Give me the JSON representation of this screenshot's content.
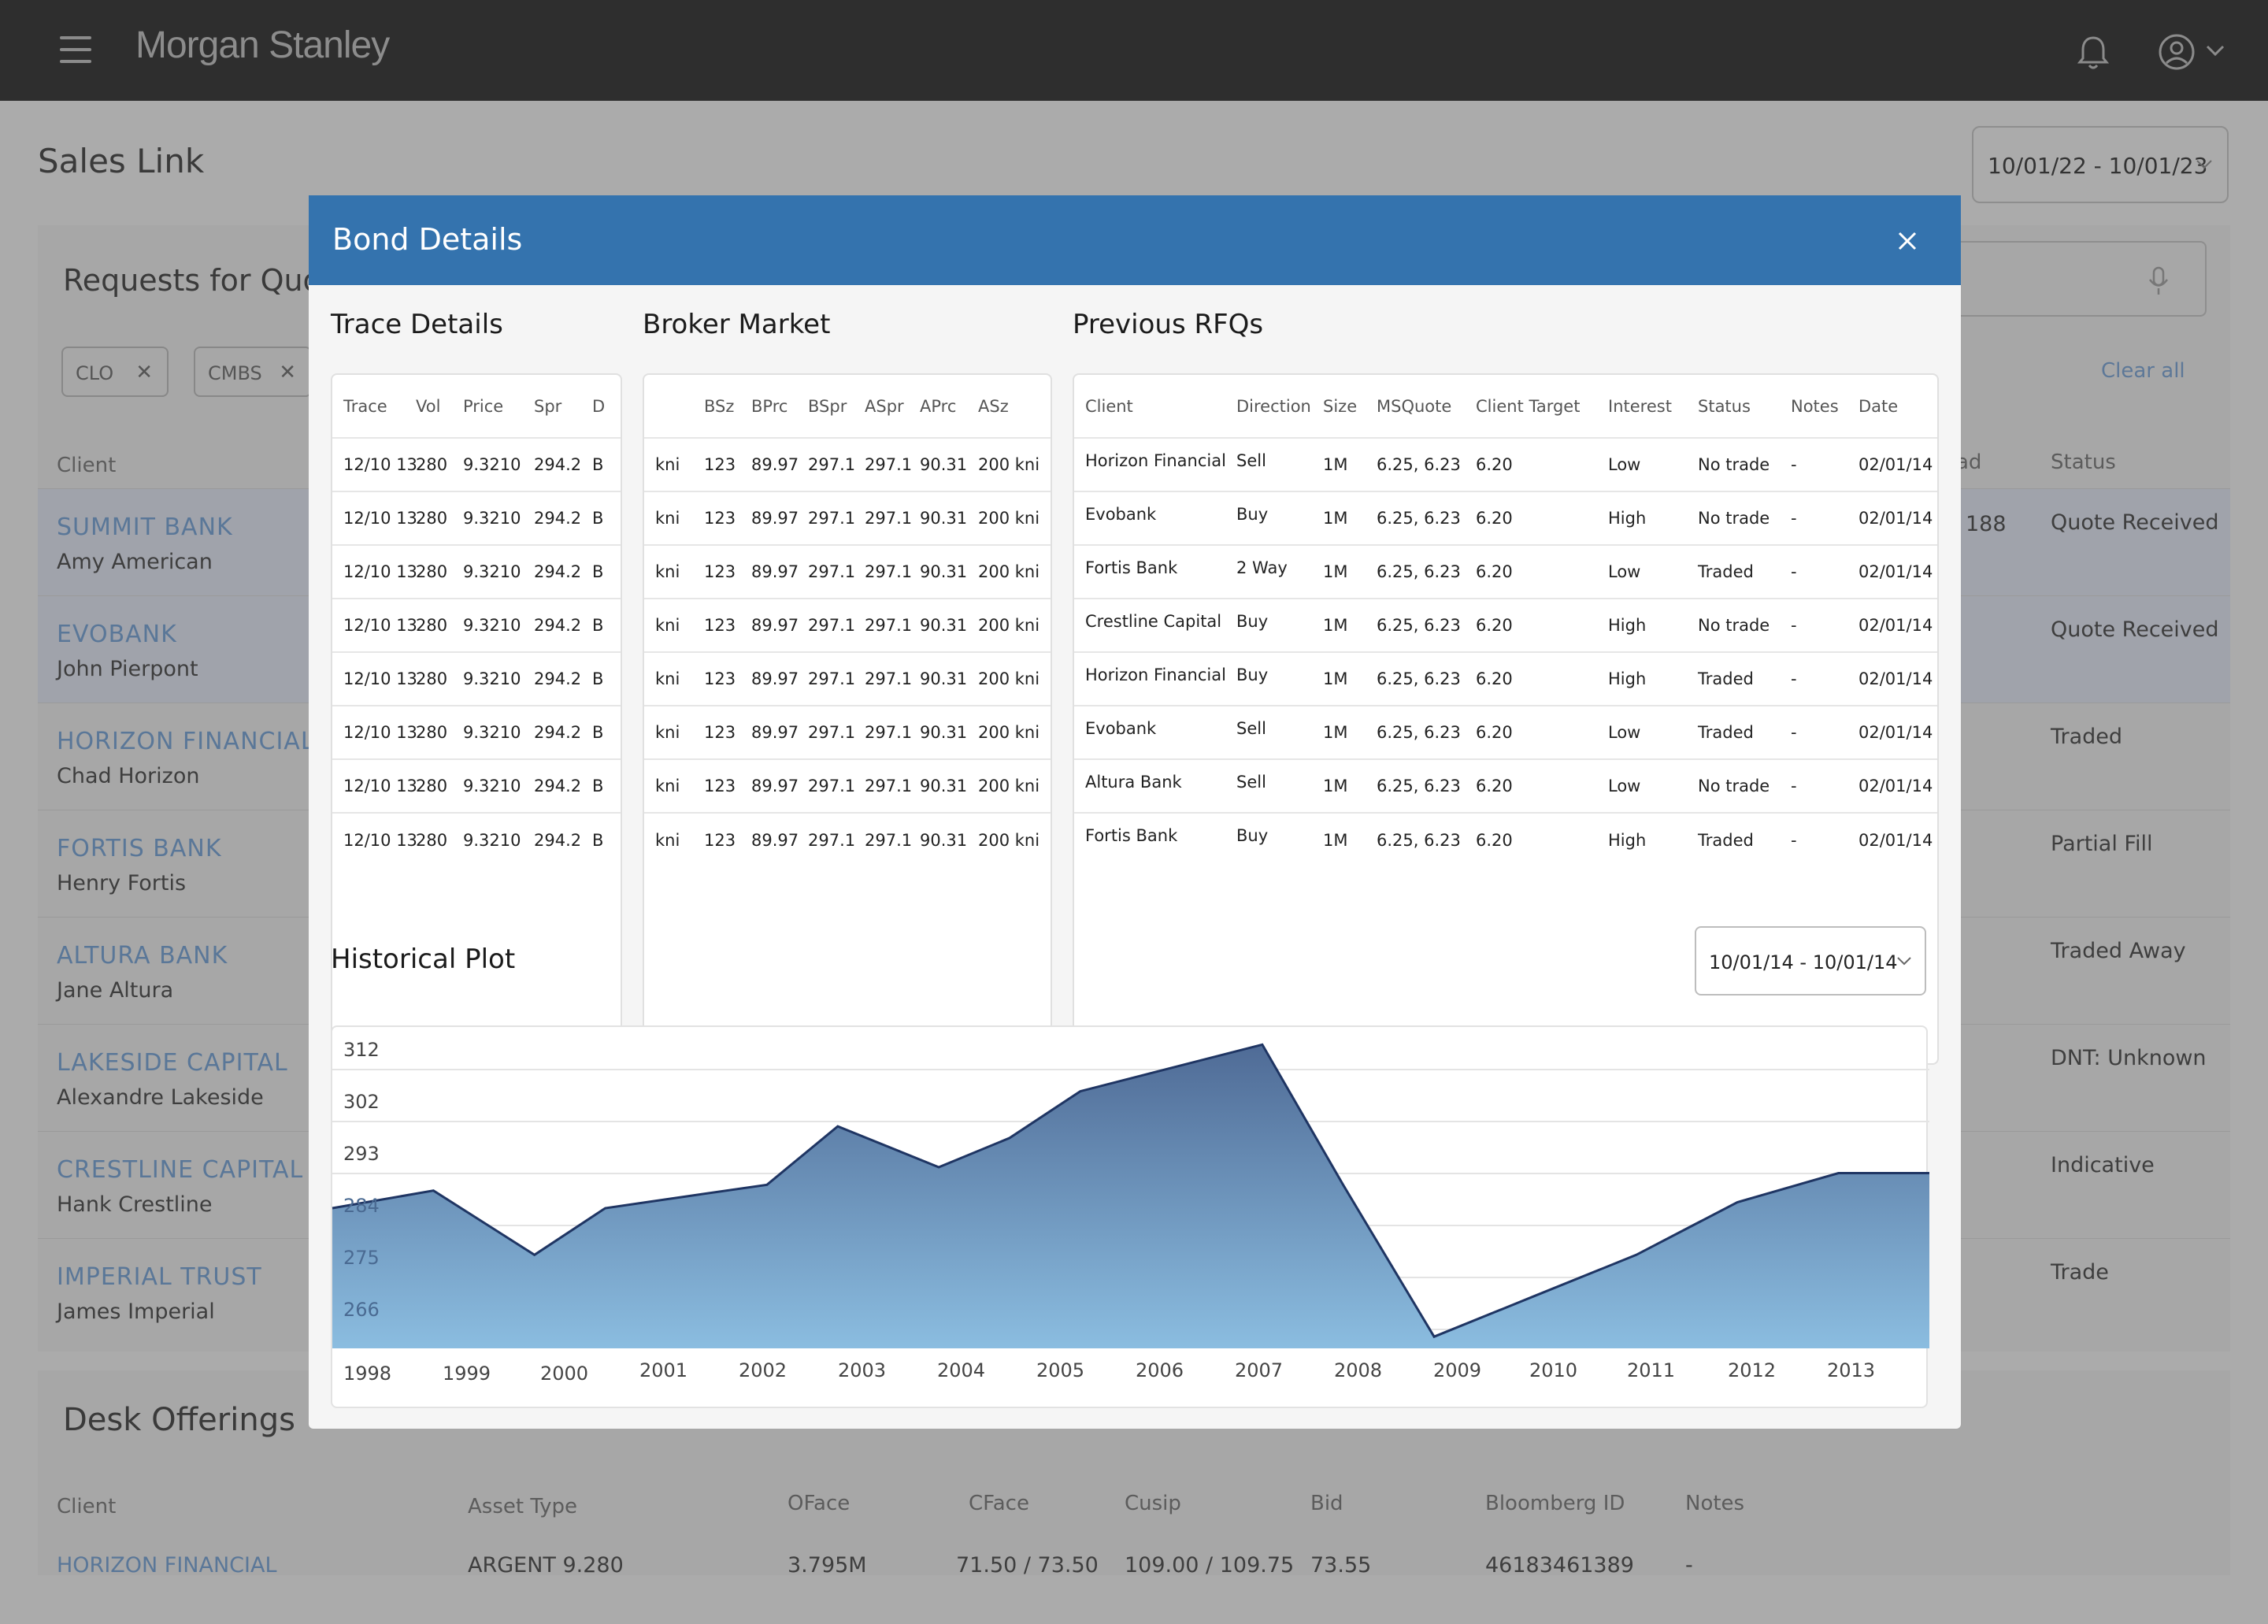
{
  "app": {
    "brand": "Morgan Stanley",
    "page_title": "Sales Link",
    "date_range": "10/01/22 - 10/01/23"
  },
  "rfq_section": {
    "title": "Requests for Quo",
    "filters": [
      "CLO",
      "CMBS"
    ],
    "clear_all": "Clear all",
    "headers": {
      "client": "Client",
      "spread": "ad",
      "status": "Status"
    },
    "visible_spread": "188",
    "rows": [
      {
        "client": "SUMMIT BANK",
        "contact": "Amy American",
        "status": "Quote Received",
        "selected": true
      },
      {
        "client": "EVOBANK",
        "contact": "John Pierpont",
        "status": "Quote Received",
        "selected": true
      },
      {
        "client": "HORIZON FINANCIAL",
        "contact": "Chad Horizon",
        "status": "Traded",
        "selected": false
      },
      {
        "client": "FORTIS BANK",
        "contact": "Henry Fortis",
        "status": "Partial Fill",
        "selected": false
      },
      {
        "client": "ALTURA BANK",
        "contact": "Jane Altura",
        "status": "Traded Away",
        "selected": false
      },
      {
        "client": "LAKESIDE CAPITAL",
        "contact": "Alexandre Lakeside",
        "status": "DNT: Unknown",
        "selected": false
      },
      {
        "client": "CRESTLINE CAPITAL",
        "contact": "Hank Crestline",
        "status": "Indicative",
        "selected": false
      },
      {
        "client": "IMPERIAL TRUST",
        "contact": "James Imperial",
        "status": "Trade",
        "selected": false
      }
    ]
  },
  "desk_offerings": {
    "title": "Desk Offerings",
    "headers": [
      "Client",
      "Asset Type",
      "OFace",
      "CFace",
      "Cusip",
      "Bid",
      "Bloomberg ID",
      "Notes"
    ],
    "first_row": [
      "HORIZON FINANCIAL",
      "ARGENT 9.280",
      "3.795M",
      "71.50 / 73.50",
      "109.00 / 109.75",
      "73.55",
      "46183461389",
      "-"
    ]
  },
  "modal": {
    "title": "Bond Details",
    "trace": {
      "title": "Trace Details",
      "headers": [
        "Trace",
        "Vol",
        "Price",
        "Spr",
        "D"
      ],
      "rows": [
        [
          "12/10 13",
          "280",
          "9.3210",
          "294.2",
          "B"
        ],
        [
          "12/10 13",
          "280",
          "9.3210",
          "294.2",
          "B"
        ],
        [
          "12/10 13",
          "280",
          "9.3210",
          "294.2",
          "B"
        ],
        [
          "12/10 13",
          "280",
          "9.3210",
          "294.2",
          "B"
        ],
        [
          "12/10 13",
          "280",
          "9.3210",
          "294.2",
          "B"
        ],
        [
          "12/10 13",
          "280",
          "9.3210",
          "294.2",
          "B"
        ],
        [
          "12/10 13",
          "280",
          "9.3210",
          "294.2",
          "B"
        ],
        [
          "12/10 13",
          "280",
          "9.3210",
          "294.2",
          "B"
        ]
      ]
    },
    "broker": {
      "title": "Broker Market",
      "headers": [
        "",
        "BSz",
        "BPrc",
        "BSpr",
        "ASpr",
        "APrc",
        "ASz"
      ],
      "rows": [
        [
          "kni",
          "123",
          "89.97",
          "297.1",
          "297.1",
          "90.31",
          "200 kni"
        ],
        [
          "kni",
          "123",
          "89.97",
          "297.1",
          "297.1",
          "90.31",
          "200 kni"
        ],
        [
          "kni",
          "123",
          "89.97",
          "297.1",
          "297.1",
          "90.31",
          "200 kni"
        ],
        [
          "kni",
          "123",
          "89.97",
          "297.1",
          "297.1",
          "90.31",
          "200 kni"
        ],
        [
          "kni",
          "123",
          "89.97",
          "297.1",
          "297.1",
          "90.31",
          "200 kni"
        ],
        [
          "kni",
          "123",
          "89.97",
          "297.1",
          "297.1",
          "90.31",
          "200 kni"
        ],
        [
          "kni",
          "123",
          "89.97",
          "297.1",
          "297.1",
          "90.31",
          "200 kni"
        ],
        [
          "kni",
          "123",
          "89.97",
          "297.1",
          "297.1",
          "90.31",
          "200 kni"
        ]
      ]
    },
    "rfqs": {
      "title": "Previous RFQs",
      "headers": [
        "Client",
        "Direction",
        "Size",
        "MSQuote",
        "Client Target",
        "Interest",
        "Status",
        "Notes",
        "Date"
      ],
      "rows": [
        [
          "Horizon Financial",
          "Sell",
          "1M",
          "6.25, 6.23",
          "6.20",
          "Low",
          "No trade",
          "-",
          "02/01/14"
        ],
        [
          "Evobank",
          "Buy",
          "1M",
          "6.25, 6.23",
          "6.20",
          "High",
          "No trade",
          "-",
          "02/01/14"
        ],
        [
          "Fortis Bank",
          "2 Way",
          "1M",
          "6.25, 6.23",
          "6.20",
          "Low",
          "Traded",
          "-",
          "02/01/14"
        ],
        [
          "Crestline Capital",
          "Buy",
          "1M",
          "6.25, 6.23",
          "6.20",
          "High",
          "No trade",
          "-",
          "02/01/14"
        ],
        [
          "Horizon Financial",
          "Buy",
          "1M",
          "6.25, 6.23",
          "6.20",
          "High",
          "Traded",
          "-",
          "02/01/14"
        ],
        [
          "Evobank",
          "Sell",
          "1M",
          "6.25, 6.23",
          "6.20",
          "Low",
          "Traded",
          "-",
          "02/01/14"
        ],
        [
          "Altura Bank",
          "Sell",
          "1M",
          "6.25, 6.23",
          "6.20",
          "Low",
          "No trade",
          "-",
          "02/01/14"
        ],
        [
          "Fortis Bank",
          "Buy",
          "1M",
          "6.25, 6.23",
          "6.20",
          "High",
          "Traded",
          "-",
          "02/01/14"
        ]
      ]
    },
    "plot": {
      "title": "Historical Plot",
      "date_range": "10/01/14 - 10/01/14"
    }
  },
  "colors": {
    "modal_header": "#3473ae",
    "link_blue": "#5a7798",
    "area_top": "#4f6b96",
    "area_bottom": "#8bbde0",
    "line": "#1f3563"
  },
  "chart_data": {
    "type": "area",
    "title": "Historical Plot",
    "x": [
      1998.0,
      1999.0,
      2000.0,
      2000.7,
      2001.5,
      2002.3,
      2003.0,
      2004.0,
      2004.7,
      2005.4,
      2006.3,
      2007.2,
      2008.0,
      2008.9,
      2009.9,
      2010.9,
      2011.9,
      2012.9,
      2013.8
    ],
    "values": [
      284,
      287,
      276,
      284,
      286,
      288,
      298,
      291,
      296,
      304,
      308,
      312,
      288,
      262,
      269,
      276,
      285,
      290,
      290
    ],
    "x_ticks": [
      "1998",
      "1999",
      "2000",
      "2001",
      "2002",
      "2003",
      "2004",
      "2005",
      "2006",
      "2007",
      "2008",
      "2009",
      "2010",
      "2011",
      "2012",
      "2013"
    ],
    "y_ticks": [
      312,
      302,
      293,
      284,
      275,
      266
    ],
    "ylim": [
      260,
      315
    ],
    "grid": true,
    "legend": "none"
  }
}
